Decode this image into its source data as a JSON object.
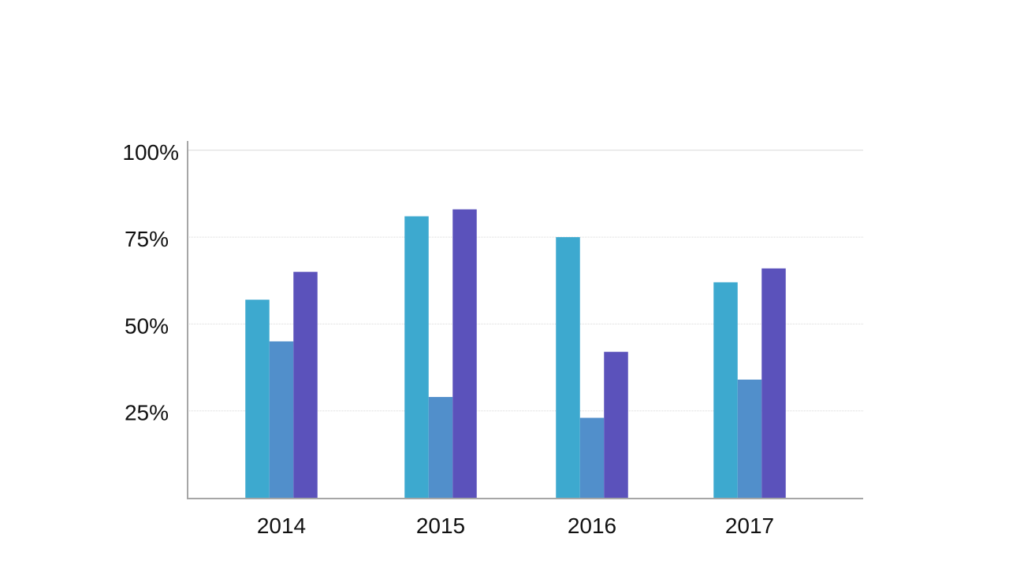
{
  "chart_data": {
    "type": "bar",
    "categories": [
      "2014",
      "2015",
      "2016",
      "2017"
    ],
    "series": [
      {
        "values": [
          57,
          81,
          75,
          62
        ],
        "color": "#3DA9CF"
      },
      {
        "values": [
          45,
          29,
          23,
          34
        ],
        "color": "#518FCB"
      },
      {
        "values": [
          65,
          83,
          42,
          66
        ],
        "color": "#5B52BB"
      }
    ],
    "ylim": [
      0,
      100
    ],
    "yticks": [
      {
        "value": 25,
        "label": "25%"
      },
      {
        "value": 50,
        "label": "50%"
      },
      {
        "value": 75,
        "label": "75%"
      },
      {
        "value": 100,
        "label": "100%"
      }
    ],
    "grid": true,
    "axis_color": "#A6A6A6",
    "grid_color": "#D9D9D9"
  }
}
